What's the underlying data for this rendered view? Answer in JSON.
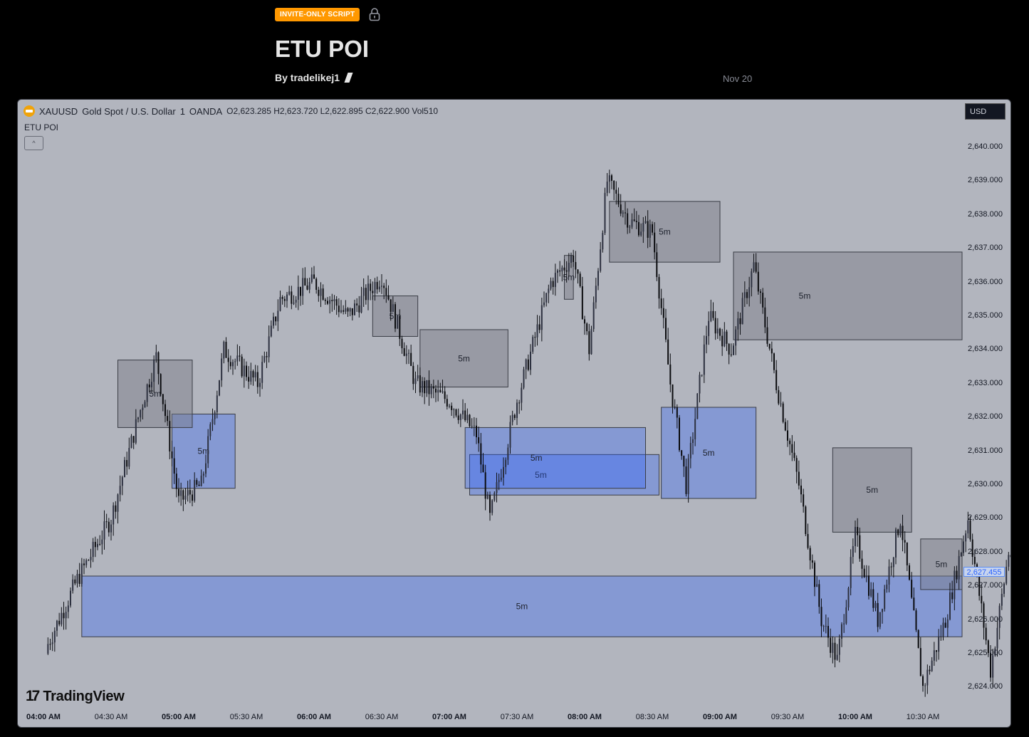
{
  "header": {
    "badge": "INVITE-ONLY SCRIPT",
    "title": "ETU POI",
    "byline": "By tradelikej1",
    "date": "Nov 20"
  },
  "chart": {
    "legend": {
      "symbol": "XAUUSD",
      "name": "Gold Spot / U.S. Dollar",
      "interval": "1",
      "exchange": "OANDA",
      "ohlc": "O2,623.285  H2,623.720  L2,622.895  C2,622.900  Vol510"
    },
    "indicator_label": "ETU POI",
    "collapse_glyph": "^",
    "currency_button": "USD",
    "last_price": "2,627.455",
    "logo_text": "TradingView",
    "logo_mark": "17"
  },
  "chart_data": {
    "type": "candlestick",
    "y_ticks": [
      "2,640.000",
      "2,639.000",
      "2,638.000",
      "2,637.000",
      "2,636.000",
      "2,635.000",
      "2,634.000",
      "2,633.000",
      "2,632.000",
      "2,631.000",
      "2,630.000",
      "2,629.000",
      "2,628.000",
      "2,627.000",
      "2,626.000",
      "2,625.000",
      "2,624.000"
    ],
    "y_tick_values": [
      2640,
      2639,
      2638,
      2637,
      2636,
      2635,
      2634,
      2633,
      2632,
      2631,
      2630,
      2629,
      2628,
      2627,
      2626,
      2625,
      2624
    ],
    "x_ticks": [
      {
        "label": "04:00 AM",
        "major": true
      },
      {
        "label": "04:30 AM",
        "major": false
      },
      {
        "label": "05:00 AM",
        "major": true
      },
      {
        "label": "05:30 AM",
        "major": false
      },
      {
        "label": "06:00 AM",
        "major": true
      },
      {
        "label": "06:30 AM",
        "major": false
      },
      {
        "label": "07:00 AM",
        "major": true
      },
      {
        "label": "07:30 AM",
        "major": false
      },
      {
        "label": "08:00 AM",
        "major": true
      },
      {
        "label": "08:30 AM",
        "major": false
      },
      {
        "label": "09:00 AM",
        "major": true
      },
      {
        "label": "09:30 AM",
        "major": false
      },
      {
        "label": "10:00 AM",
        "major": true
      },
      {
        "label": "10:30 AM",
        "major": false
      }
    ],
    "ylim": [
      2623.5,
      2640.4
    ],
    "last_price": 2627.455,
    "zone_label": "5m",
    "zones_bearish": [
      {
        "t0": "04:33",
        "t1": "05:06",
        "top": 2633.7,
        "bottom": 2631.7
      },
      {
        "t0": "06:26",
        "t1": "06:46",
        "top": 2635.6,
        "bottom": 2634.4
      },
      {
        "t0": "06:47",
        "t1": "07:26",
        "top": 2634.6,
        "bottom": 2632.9
      },
      {
        "t0": "07:51",
        "t1": "07:55",
        "top": 2636.8,
        "bottom": 2635.5
      },
      {
        "t0": "08:11",
        "t1": "09:00",
        "top": 2638.4,
        "bottom": 2636.6
      },
      {
        "t0": "09:06",
        "t1": "11:00",
        "top": 2636.9,
        "bottom": 2634.3
      },
      {
        "t0": "09:50",
        "t1": "10:25",
        "top": 2631.1,
        "bottom": 2628.6
      },
      {
        "t0": "10:29",
        "t1": "10:55",
        "top": 2628.4,
        "bottom": 2626.9
      }
    ],
    "zones_bullish": [
      {
        "t0": "04:17",
        "t1": "11:00",
        "top": 2627.3,
        "bottom": 2625.5
      },
      {
        "t0": "04:57",
        "t1": "05:25",
        "top": 2632.1,
        "bottom": 2629.9
      },
      {
        "t0": "07:09",
        "t1": "08:33",
        "top": 2630.9,
        "bottom": 2629.7
      },
      {
        "t0": "07:07",
        "t1": "08:27",
        "top": 2631.7,
        "bottom": 2629.9
      },
      {
        "t0": "08:34",
        "t1": "09:16",
        "top": 2632.3,
        "bottom": 2629.6
      }
    ]
  }
}
